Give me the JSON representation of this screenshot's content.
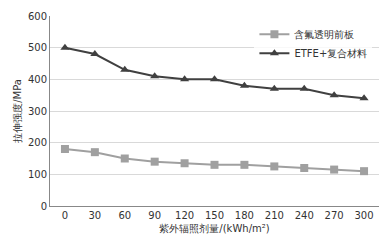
{
  "chart_data": {
    "type": "line",
    "x": [
      0,
      30,
      60,
      90,
      120,
      150,
      180,
      210,
      240,
      270,
      300
    ],
    "x_label": "紫外辐照剂量/(kWh/m²)",
    "y_label": "拉伸强度/MPa",
    "xlim": [
      -15,
      315
    ],
    "xticks": [
      0,
      30,
      60,
      90,
      120,
      150,
      180,
      210,
      240,
      270,
      300
    ],
    "ylim": [
      0,
      600
    ],
    "yticks": [
      0,
      100,
      200,
      300,
      400,
      500,
      600
    ],
    "grid": true,
    "legend": "upper right",
    "series": [
      {
        "name": "含氟透明前板",
        "color": "#a0a0a0",
        "marker": "square",
        "line_style": "solid",
        "values": [
          180,
          170,
          150,
          140,
          135,
          130,
          130,
          125,
          120,
          115,
          110
        ]
      },
      {
        "name": "ETFE+复合材料",
        "color": "#404040",
        "marker": "triangle-up",
        "line_style": "solid",
        "values": [
          500,
          480,
          430,
          410,
          400,
          400,
          380,
          370,
          370,
          350,
          340
        ]
      }
    ]
  }
}
